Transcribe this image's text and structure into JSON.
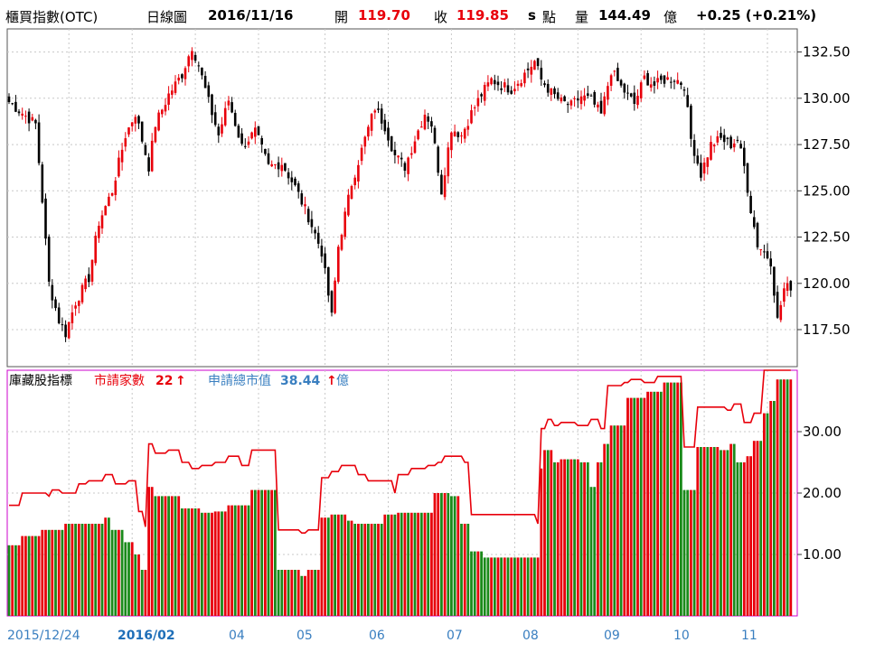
{
  "header": {
    "name": "櫃買指數(OTC)",
    "period": "日線圖",
    "date": "2016/11/16",
    "open_label": "開",
    "open_value": "119.70",
    "close_label": "收",
    "close_value": "119.85",
    "unit_s": "s",
    "point_label": "點",
    "volume_label": "量",
    "volume_value": "144.49",
    "volume_unit": "億",
    "change": "+0.25 (+0.21%)"
  },
  "lower_legend": {
    "title": "庫藏股指標",
    "series1_label": "市請家數",
    "series1_value": "22",
    "series2_label": "申請總市值",
    "series2_value": "38.44",
    "series2_unit": "億",
    "arrow": "↑"
  },
  "colors": {
    "up": "#e8000b",
    "down": "#000000",
    "bar_up": "#e8000b",
    "bar_down": "#1a8a1a",
    "line": "#e8000b",
    "accent": "#3a7fc0",
    "border_lower": "#cc00cc",
    "grid": "#c8c8c8"
  },
  "chart_data": [
    {
      "type": "candlestick",
      "title": "櫃買指數(OTC) 日線圖",
      "y_ticks": [
        "132.50",
        "130.00",
        "127.50",
        "125.00",
        "122.50",
        "120.00",
        "117.50"
      ],
      "ylim": [
        115.5,
        133.75
      ],
      "x_ticks": [
        "2015/12/24",
        "2016/02",
        "04",
        "05",
        "06",
        "07",
        "08",
        "09",
        "10",
        "11"
      ],
      "grid": true,
      "waypoints": [
        [
          0,
          129.8
        ],
        [
          8,
          128.6
        ],
        [
          10,
          124.5
        ],
        [
          12,
          120.0
        ],
        [
          15,
          118.0
        ],
        [
          17,
          117.3
        ],
        [
          20,
          119.0
        ],
        [
          24,
          120.3
        ],
        [
          27,
          123.3
        ],
        [
          31,
          125.0
        ],
        [
          35,
          128.0
        ],
        [
          38,
          129.2
        ],
        [
          42,
          126.3
        ],
        [
          44,
          128.6
        ],
        [
          48,
          130.2
        ],
        [
          52,
          131.3
        ],
        [
          55,
          132.8
        ],
        [
          57,
          131.8
        ],
        [
          60,
          129.8
        ],
        [
          63,
          128.0
        ],
        [
          66,
          129.9
        ],
        [
          70,
          127.4
        ],
        [
          74,
          128.2
        ],
        [
          78,
          126.3
        ],
        [
          82,
          126.5
        ],
        [
          86,
          125.2
        ],
        [
          90,
          123.6
        ],
        [
          94,
          121.7
        ],
        [
          97,
          118.2
        ],
        [
          99,
          122.0
        ],
        [
          103,
          125.4
        ],
        [
          107,
          127.8
        ],
        [
          110,
          129.5
        ],
        [
          113,
          128.5
        ],
        [
          116,
          126.9
        ],
        [
          119,
          126.3
        ],
        [
          122,
          127.8
        ],
        [
          125,
          129.2
        ],
        [
          127,
          128.6
        ],
        [
          130,
          125.0
        ],
        [
          133,
          128.4
        ],
        [
          136,
          128.0
        ],
        [
          139,
          129.2
        ],
        [
          142,
          130.2
        ],
        [
          145,
          131.0
        ],
        [
          148,
          130.7
        ],
        [
          151,
          130.5
        ],
        [
          154,
          131.1
        ],
        [
          158,
          132.0
        ],
        [
          160,
          131.0
        ],
        [
          163,
          130.3
        ],
        [
          166,
          129.8
        ],
        [
          169,
          129.6
        ],
        [
          172,
          130.1
        ],
        [
          175,
          129.9
        ],
        [
          178,
          129.1
        ],
        [
          181,
          131.5
        ],
        [
          184,
          130.6
        ],
        [
          188,
          129.7
        ],
        [
          191,
          131.1
        ],
        [
          194,
          130.7
        ],
        [
          197,
          131.0
        ],
        [
          200,
          131.1
        ],
        [
          203,
          130.7
        ],
        [
          205,
          127.8
        ],
        [
          208,
          125.9
        ],
        [
          211,
          127.5
        ],
        [
          214,
          127.8
        ],
        [
          217,
          127.5
        ],
        [
          219,
          127.8
        ],
        [
          221,
          126.3
        ],
        [
          223,
          124.0
        ],
        [
          225,
          122.1
        ],
        [
          227,
          121.7
        ],
        [
          229,
          121.2
        ],
        [
          231,
          118.0
        ],
        [
          233,
          119.7
        ],
        [
          235,
          119.85
        ]
      ]
    },
    {
      "type": "bar+line",
      "title": "庫藏股指標",
      "y_ticks": [
        "30.00",
        "20.00",
        "10.00"
      ],
      "ylim": [
        0,
        40
      ],
      "bar_steps": [
        [
          0,
          11.5
        ],
        [
          4,
          13.0
        ],
        [
          10,
          14.0
        ],
        [
          17,
          15.0
        ],
        [
          29,
          16.0
        ],
        [
          31,
          14.0
        ],
        [
          35,
          12.0
        ],
        [
          38,
          10.0
        ],
        [
          40,
          7.5
        ],
        [
          42,
          21.0
        ],
        [
          44,
          19.5
        ],
        [
          52,
          17.5
        ],
        [
          58,
          16.8
        ],
        [
          62,
          17.0
        ],
        [
          66,
          18.0
        ],
        [
          73,
          20.5
        ],
        [
          81,
          7.5
        ],
        [
          88,
          6.5
        ],
        [
          90,
          7.5
        ],
        [
          94,
          16.0
        ],
        [
          97,
          16.5
        ],
        [
          102,
          15.5
        ],
        [
          104,
          15.0
        ],
        [
          113,
          16.5
        ],
        [
          117,
          16.8
        ],
        [
          128,
          20.0
        ],
        [
          133,
          19.5
        ],
        [
          136,
          15.0
        ],
        [
          139,
          10.5
        ],
        [
          143,
          9.5
        ],
        [
          160,
          24.0
        ],
        [
          161,
          27.0
        ],
        [
          164,
          25.0
        ],
        [
          166,
          25.5
        ],
        [
          172,
          25.0
        ],
        [
          175,
          21.0
        ],
        [
          177,
          25.0
        ],
        [
          179,
          28.0
        ],
        [
          181,
          31.0
        ],
        [
          186,
          35.5
        ],
        [
          192,
          36.5
        ],
        [
          197,
          38.0
        ],
        [
          203,
          20.5
        ],
        [
          207,
          27.5
        ],
        [
          214,
          27.0
        ],
        [
          217,
          28.0
        ],
        [
          219,
          25.0
        ],
        [
          222,
          26.0
        ],
        [
          224,
          28.5
        ],
        [
          227,
          33.0
        ],
        [
          229,
          35.0
        ],
        [
          231,
          38.5
        ]
      ],
      "line_steps": [
        [
          0,
          18.0
        ],
        [
          4,
          20.0
        ],
        [
          12,
          19.5
        ],
        [
          13,
          20.5
        ],
        [
          16,
          20.0
        ],
        [
          21,
          21.5
        ],
        [
          24,
          22.0
        ],
        [
          29,
          23.0
        ],
        [
          32,
          21.5
        ],
        [
          36,
          22.0
        ],
        [
          39,
          17.0
        ],
        [
          41,
          14.5
        ],
        [
          42,
          28.0
        ],
        [
          44,
          26.5
        ],
        [
          48,
          27.0
        ],
        [
          52,
          25.0
        ],
        [
          55,
          24.0
        ],
        [
          58,
          24.5
        ],
        [
          62,
          25.0
        ],
        [
          66,
          26.0
        ],
        [
          70,
          24.5
        ],
        [
          73,
          27.0
        ],
        [
          81,
          14.0
        ],
        [
          88,
          13.5
        ],
        [
          90,
          14.0
        ],
        [
          94,
          22.5
        ],
        [
          97,
          23.5
        ],
        [
          100,
          24.5
        ],
        [
          105,
          23.0
        ],
        [
          108,
          22.0
        ],
        [
          116,
          20.0
        ],
        [
          117,
          23.0
        ],
        [
          121,
          24.0
        ],
        [
          126,
          24.5
        ],
        [
          129,
          25.0
        ],
        [
          131,
          26.0
        ],
        [
          137,
          25.0
        ],
        [
          139,
          16.5
        ],
        [
          158,
          16.5
        ],
        [
          159,
          15.0
        ],
        [
          160,
          30.5
        ],
        [
          162,
          32.0
        ],
        [
          164,
          31.0
        ],
        [
          166,
          31.5
        ],
        [
          171,
          31.0
        ],
        [
          175,
          32.0
        ],
        [
          178,
          30.5
        ],
        [
          180,
          37.5
        ],
        [
          185,
          38.0
        ],
        [
          187,
          38.5
        ],
        [
          191,
          38.0
        ],
        [
          195,
          39.0
        ],
        [
          203,
          27.5
        ],
        [
          207,
          34.0
        ],
        [
          216,
          33.5
        ],
        [
          218,
          34.5
        ],
        [
          221,
          31.5
        ],
        [
          224,
          33.0
        ],
        [
          227,
          40.0
        ]
      ]
    }
  ]
}
